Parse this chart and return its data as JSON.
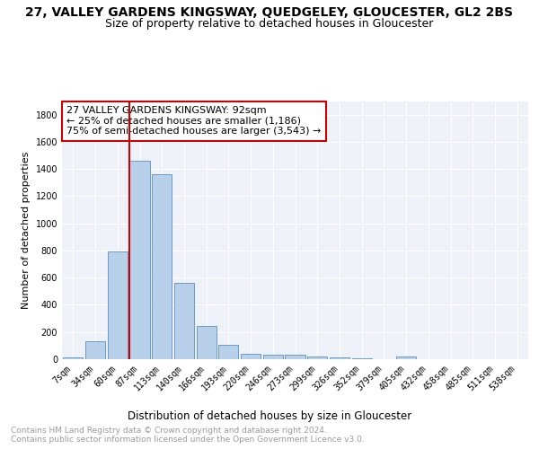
{
  "title": "27, VALLEY GARDENS KINGSWAY, QUEDGELEY, GLOUCESTER, GL2 2BS",
  "subtitle": "Size of property relative to detached houses in Gloucester",
  "xlabel": "Distribution of detached houses by size in Gloucester",
  "ylabel": "Number of detached properties",
  "categories": [
    "7sqm",
    "34sqm",
    "60sqm",
    "87sqm",
    "113sqm",
    "140sqm",
    "166sqm",
    "193sqm",
    "220sqm",
    "246sqm",
    "273sqm",
    "299sqm",
    "326sqm",
    "352sqm",
    "379sqm",
    "405sqm",
    "432sqm",
    "458sqm",
    "485sqm",
    "511sqm",
    "538sqm"
  ],
  "values": [
    12,
    135,
    790,
    1460,
    1360,
    565,
    245,
    108,
    38,
    30,
    30,
    18,
    12,
    8,
    0,
    18,
    0,
    0,
    0,
    0,
    0
  ],
  "bar_color": "#b8d0ea",
  "bar_edge_color": "#5a8fc2",
  "property_line_index": 3,
  "property_line_color": "#cc0000",
  "annotation_box_text": "27 VALLEY GARDENS KINGSWAY: 92sqm\n← 25% of detached houses are smaller (1,186)\n75% of semi-detached houses are larger (3,543) →",
  "annotation_box_color": "#cc0000",
  "ylim": [
    0,
    1900
  ],
  "yticks": [
    0,
    200,
    400,
    600,
    800,
    1000,
    1200,
    1400,
    1600,
    1800
  ],
  "background_color": "#eef2f8",
  "grid_color": "#ffffff",
  "footer_text": "Contains HM Land Registry data © Crown copyright and database right 2024.\nContains public sector information licensed under the Open Government Licence v3.0.",
  "title_fontsize": 10,
  "subtitle_fontsize": 9,
  "xlabel_fontsize": 8.5,
  "ylabel_fontsize": 8,
  "tick_fontsize": 7,
  "annotation_fontsize": 8,
  "footer_fontsize": 6.5
}
